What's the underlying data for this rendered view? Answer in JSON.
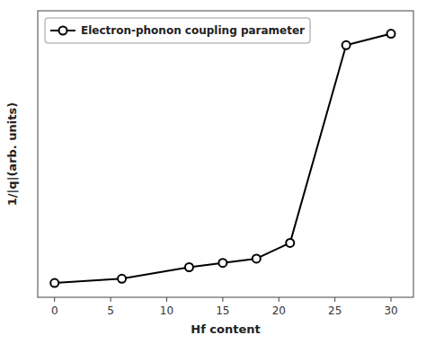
{
  "chart_data": {
    "type": "line",
    "x": [
      0,
      6,
      12,
      15,
      18,
      21,
      26,
      30
    ],
    "series": [
      {
        "name": "Electron-phonon coupling parameter",
        "color": "black",
        "marker": "circle",
        "line_style": "solid",
        "values": [
          0.05,
          0.065,
          0.105,
          0.12,
          0.135,
          0.19,
          0.88,
          0.92
        ]
      }
    ],
    "xlabel": "Hf content",
    "ylabel": "1/|q|(arb. units)",
    "xlim": [
      -1.5,
      32
    ],
    "xticks": [
      0,
      5,
      10,
      15,
      20,
      25,
      30
    ],
    "ylim": [
      0,
      1.0
    ],
    "tick_labels": "x",
    "grid": false,
    "legend": "top-left"
  }
}
